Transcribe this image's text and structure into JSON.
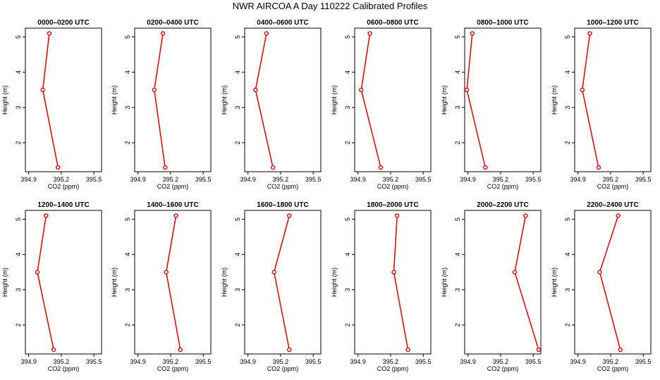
{
  "figure": {
    "title": "NWR AIRCOA A  Day 110222  Calibrated Profiles",
    "colors": {
      "line": "#dd0000",
      "frame": "#000000"
    }
  },
  "chart_data": [
    {
      "type": "line",
      "title": "0000–0200 UTC",
      "xlabel": "CO2 (ppm)",
      "ylabel": "Height (m)",
      "xlim": [
        394.87,
        395.57
      ],
      "ylim": [
        1.18,
        5.25
      ],
      "xticks": [
        394.9,
        395.2,
        395.5
      ],
      "yticks": [
        2,
        3,
        4,
        5
      ],
      "x": [
        395.09,
        395.03,
        395.17
      ],
      "y": [
        5.1,
        3.5,
        1.3
      ]
    },
    {
      "type": "line",
      "title": "0200–0400 UTC",
      "xlabel": "CO2 (ppm)",
      "ylabel": "Height (m)",
      "xlim": [
        394.87,
        395.57
      ],
      "ylim": [
        1.18,
        5.25
      ],
      "xticks": [
        394.9,
        395.2,
        395.5
      ],
      "yticks": [
        2,
        3,
        4,
        5
      ],
      "x": [
        395.13,
        395.05,
        395.15
      ],
      "y": [
        5.1,
        3.5,
        1.3
      ]
    },
    {
      "type": "line",
      "title": "0400–0600 UTC",
      "xlabel": "CO2 (ppm)",
      "ylabel": "Height (m)",
      "xlim": [
        394.87,
        395.57
      ],
      "ylim": [
        1.18,
        5.25
      ],
      "xticks": [
        394.9,
        395.2,
        395.5
      ],
      "yticks": [
        2,
        3,
        4,
        5
      ],
      "x": [
        395.07,
        394.97,
        395.13
      ],
      "y": [
        5.1,
        3.5,
        1.3
      ]
    },
    {
      "type": "line",
      "title": "0600–0800 UTC",
      "xlabel": "CO2 (ppm)",
      "ylabel": "Height (m)",
      "xlim": [
        394.87,
        395.57
      ],
      "ylim": [
        1.18,
        5.25
      ],
      "xticks": [
        394.9,
        395.2,
        395.5
      ],
      "yticks": [
        2,
        3,
        4,
        5
      ],
      "x": [
        395.01,
        394.93,
        395.11
      ],
      "y": [
        5.1,
        3.5,
        1.3
      ]
    },
    {
      "type": "line",
      "title": "0800–1000 UTC",
      "xlabel": "CO2 (ppm)",
      "ylabel": "Height (m)",
      "xlim": [
        394.87,
        395.57
      ],
      "ylim": [
        1.18,
        5.25
      ],
      "xticks": [
        394.9,
        395.2,
        395.5
      ],
      "yticks": [
        2,
        3,
        4,
        5
      ],
      "x": [
        394.94,
        394.89,
        395.06
      ],
      "y": [
        5.1,
        3.5,
        1.3
      ]
    },
    {
      "type": "line",
      "title": "1000–1200 UTC",
      "xlabel": "CO2 (ppm)",
      "ylabel": "Height (m)",
      "xlim": [
        394.87,
        395.57
      ],
      "ylim": [
        1.18,
        5.25
      ],
      "xticks": [
        394.9,
        395.2,
        395.5
      ],
      "yticks": [
        2,
        3,
        4,
        5
      ],
      "x": [
        395.01,
        394.94,
        395.09
      ],
      "y": [
        5.1,
        3.5,
        1.3
      ]
    },
    {
      "type": "line",
      "title": "1200–1400 UTC",
      "xlabel": "CO2 (ppm)",
      "ylabel": "Height (m)",
      "xlim": [
        394.87,
        395.57
      ],
      "ylim": [
        1.18,
        5.25
      ],
      "xticks": [
        394.9,
        395.2,
        395.5
      ],
      "yticks": [
        2,
        3,
        4,
        5
      ],
      "x": [
        395.06,
        394.98,
        395.13
      ],
      "y": [
        5.1,
        3.5,
        1.3
      ]
    },
    {
      "type": "line",
      "title": "1400–1600 UTC",
      "xlabel": "CO2 (ppm)",
      "ylabel": "Height (m)",
      "xlim": [
        394.87,
        395.57
      ],
      "ylim": [
        1.18,
        5.25
      ],
      "xticks": [
        394.9,
        395.2,
        395.5
      ],
      "yticks": [
        2,
        3,
        4,
        5
      ],
      "x": [
        395.25,
        395.16,
        395.29
      ],
      "y": [
        5.1,
        3.5,
        1.3
      ]
    },
    {
      "type": "line",
      "title": "1600–1800 UTC",
      "xlabel": "CO2 (ppm)",
      "ylabel": "Height (m)",
      "xlim": [
        394.87,
        395.57
      ],
      "ylim": [
        1.18,
        5.25
      ],
      "xticks": [
        394.9,
        395.2,
        395.5
      ],
      "yticks": [
        2,
        3,
        4,
        5
      ],
      "x": [
        395.28,
        395.14,
        395.28
      ],
      "y": [
        5.1,
        3.5,
        1.3
      ]
    },
    {
      "type": "line",
      "title": "1800–2000 UTC",
      "xlabel": "CO2 (ppm)",
      "ylabel": "Height (m)",
      "xlim": [
        394.87,
        395.57
      ],
      "ylim": [
        1.18,
        5.25
      ],
      "xticks": [
        394.9,
        395.2,
        395.5
      ],
      "yticks": [
        2,
        3,
        4,
        5
      ],
      "x": [
        395.26,
        395.23,
        395.36
      ],
      "y": [
        5.1,
        3.5,
        1.3
      ]
    },
    {
      "type": "line",
      "title": "2000–2200 UTC",
      "xlabel": "CO2 (ppm)",
      "ylabel": "Height (m)",
      "xlim": [
        394.87,
        395.57
      ],
      "ylim": [
        1.18,
        5.25
      ],
      "xticks": [
        394.9,
        395.2,
        395.5
      ],
      "yticks": [
        2,
        3,
        4,
        5
      ],
      "x": [
        395.43,
        395.33,
        395.55
      ],
      "y": [
        5.1,
        3.5,
        1.3
      ]
    },
    {
      "type": "line",
      "title": "2200–2400 UTC",
      "xlabel": "CO2 (ppm)",
      "ylabel": "Height (m)",
      "xlim": [
        394.87,
        395.57
      ],
      "ylim": [
        1.18,
        5.25
      ],
      "xticks": [
        394.9,
        395.2,
        395.5
      ],
      "yticks": [
        2,
        3,
        4,
        5
      ],
      "x": [
        395.27,
        395.1,
        395.29
      ],
      "y": [
        5.1,
        3.5,
        1.3
      ]
    }
  ]
}
